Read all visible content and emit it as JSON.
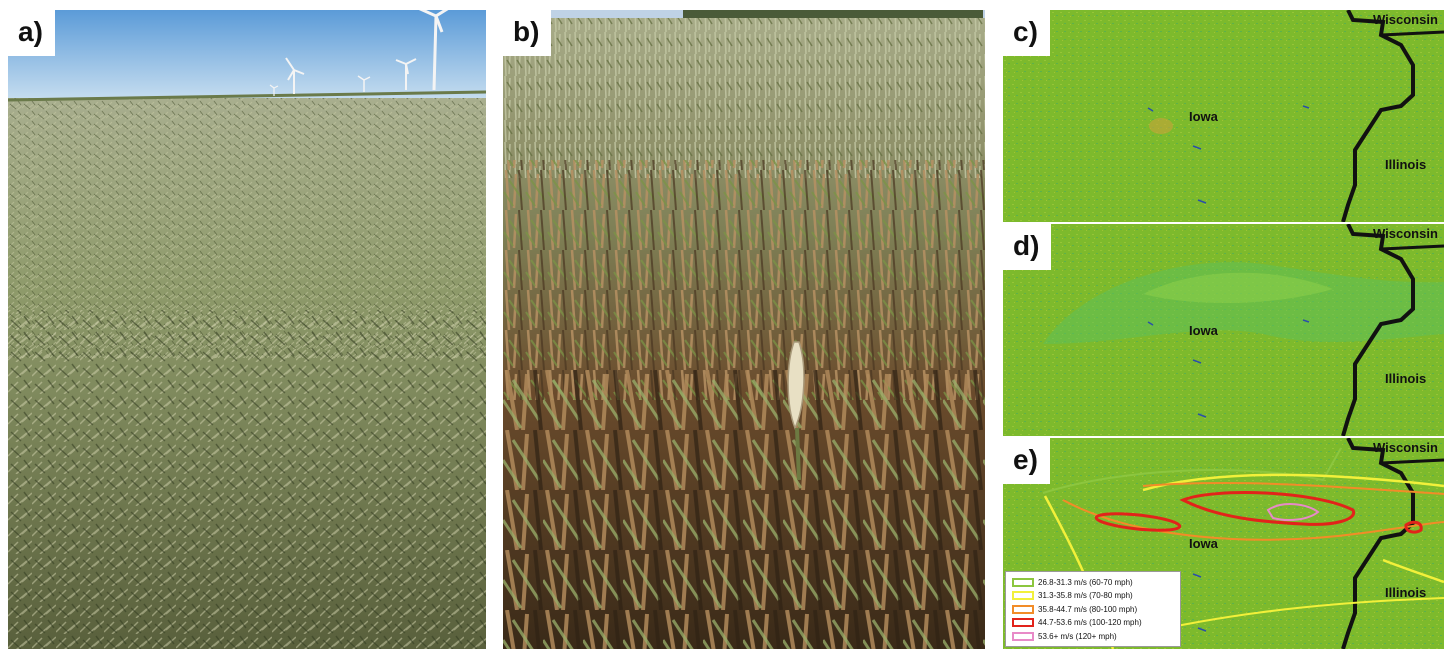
{
  "panels": {
    "a": {
      "label": "a)"
    },
    "b": {
      "label": "b)"
    },
    "c": {
      "label": "c)",
      "states": {
        "wisconsin": "Wisconsin",
        "iowa": "Iowa",
        "illinois": "Illinois"
      }
    },
    "d": {
      "label": "d)",
      "states": {
        "wisconsin": "Wisconsin",
        "iowa": "Iowa",
        "illinois": "Illinois"
      }
    },
    "e": {
      "label": "e)",
      "states": {
        "wisconsin": "Wisconsin",
        "iowa": "Iowa",
        "illinois": "Illinois"
      }
    }
  },
  "legend": {
    "items": [
      {
        "label": "26.8-31.3 m/s (60-70 mph)",
        "color": "#8cc63f"
      },
      {
        "label": "31.3-35.8 m/s (70-80 mph)",
        "color": "#f2f03a"
      },
      {
        "label": "35.8-44.7 m/s (80-100 mph)",
        "color": "#f28c28"
      },
      {
        "label": "44.7-53.6 m/s (100-120 mph)",
        "color": "#e2231a"
      },
      {
        "label": "53.6+ m/s (120+ mph)",
        "color": "#e88ac8"
      }
    ]
  },
  "colors": {
    "map_green": "#7dba2c",
    "river": "#111111",
    "field_grass": "#8e9a6a",
    "corn_brown": "#9a6a3e",
    "sky": "#a9cbe8"
  }
}
